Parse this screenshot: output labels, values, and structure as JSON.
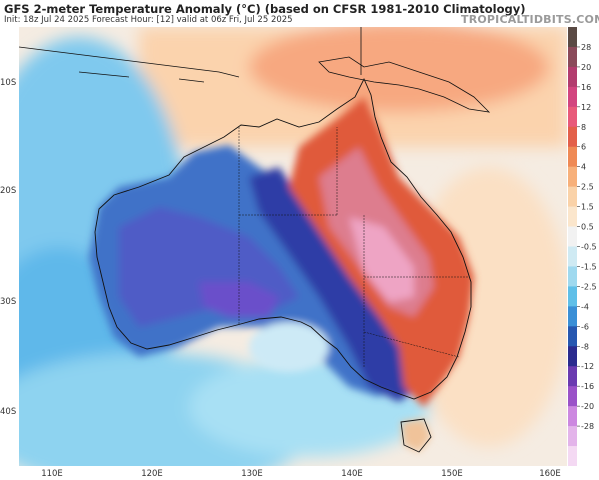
{
  "header": {
    "title": "GFS 2-meter Temperature Anomaly (°C) (based on CFSR 1981-2010 Climatology)",
    "subtitle": "Init: 18z Jul 24 2025   Forecast Hour: [12]   valid at 06z Fri, Jul 25 2025",
    "brand": "TROPICALTIDBITS.COM"
  },
  "axes": {
    "lat_labels": [
      "10S",
      "20S",
      "30S",
      "40S"
    ],
    "lon_labels": [
      "110E",
      "120E",
      "130E",
      "140E",
      "150E",
      "160E"
    ]
  },
  "colorbar": {
    "labels": [
      "28",
      "20",
      "16",
      "12",
      "8",
      "6",
      "4",
      "2.5",
      "1.5",
      "0.5",
      "-0.5",
      "-1.5",
      "-2.5",
      "-4",
      "-6",
      "-8",
      "-12",
      "-16",
      "-20",
      "-28"
    ],
    "colors": [
      "#5a4a44",
      "#8a4a5a",
      "#b23c6e",
      "#d2457f",
      "#e85a7a",
      "#e3604a",
      "#ef8a55",
      "#f7b07a",
      "#fad2a8",
      "#fbe6cc",
      "#f2f2f2",
      "#cfeaf3",
      "#9fd9ef",
      "#5fbfe8",
      "#3a8fd6",
      "#2657b0",
      "#2a2a8e",
      "#6a3ab0",
      "#9a52c8",
      "#cc88e0",
      "#e3b4ea",
      "#f4d9f3"
    ]
  },
  "map_colors": {
    "ocean_warm": "#fbd7b6",
    "ocean_neutral": "#f5f0ea",
    "ocean_cool": "#9fdcf2",
    "west_cold": "#3c6fc7",
    "west_deep": "#5a4fc4",
    "east_warm": "#e35a3c",
    "east_hot": "#eaa0bf",
    "cold_coast": "#2c3a9e"
  }
}
